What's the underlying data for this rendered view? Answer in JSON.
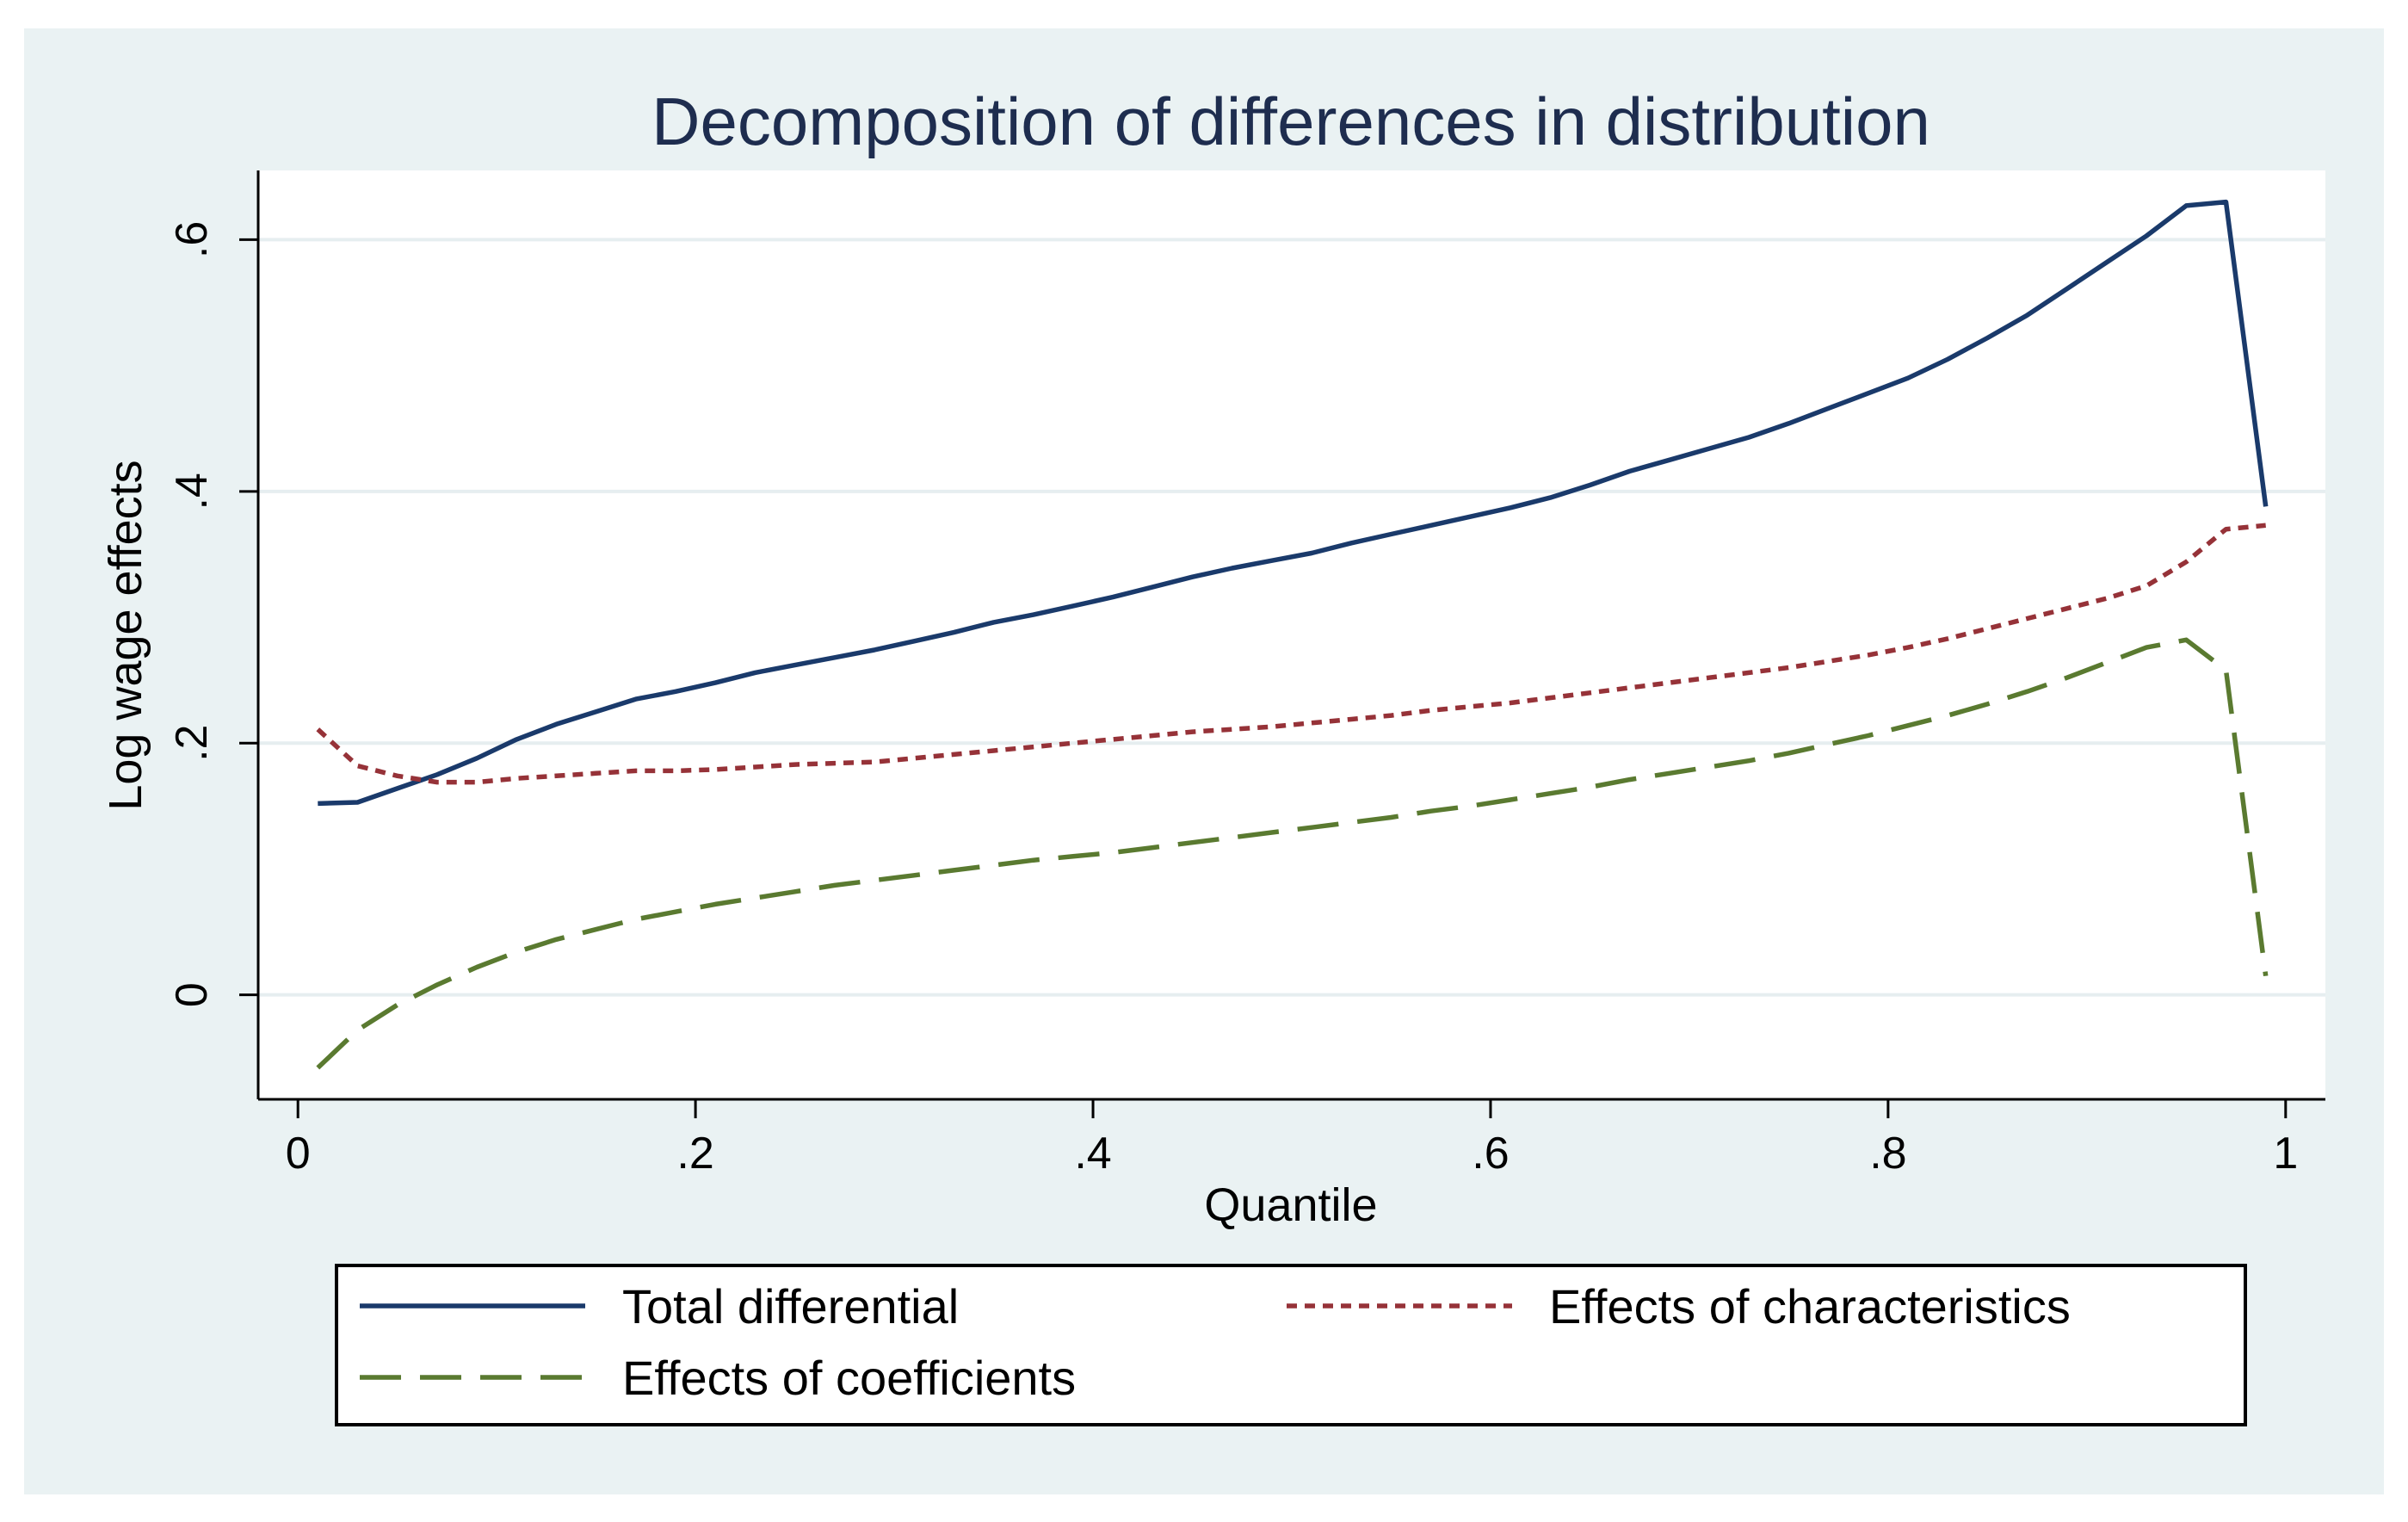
{
  "chart_data": {
    "type": "line",
    "title": "Decomposition of differences in distribution",
    "xlabel": "Quantile",
    "ylabel": "Log wage effects",
    "xlim": [
      -0.02,
      1.02
    ],
    "ylim": [
      -0.083,
      0.655
    ],
    "x_ticks": [
      {
        "value": 0,
        "label": "0"
      },
      {
        "value": 0.2,
        "label": ".2"
      },
      {
        "value": 0.4,
        "label": ".4"
      },
      {
        "value": 0.6,
        "label": ".6"
      },
      {
        "value": 0.8,
        "label": ".8"
      },
      {
        "value": 1,
        "label": "1"
      }
    ],
    "y_ticks": [
      {
        "value": 0,
        "label": "0"
      },
      {
        "value": 0.2,
        "label": ".2"
      },
      {
        "value": 0.4,
        "label": ".4"
      },
      {
        "value": 0.6,
        "label": ".6"
      }
    ],
    "grid": true,
    "legend_position": "bottom",
    "series": [
      {
        "name": "Total differential",
        "color": "#1a3a6b",
        "style": "solid",
        "x": [
          0.01,
          0.03,
          0.05,
          0.07,
          0.09,
          0.11,
          0.13,
          0.15,
          0.17,
          0.19,
          0.21,
          0.23,
          0.25,
          0.27,
          0.29,
          0.31,
          0.33,
          0.35,
          0.37,
          0.39,
          0.41,
          0.43,
          0.45,
          0.47,
          0.49,
          0.51,
          0.53,
          0.55,
          0.57,
          0.59,
          0.61,
          0.63,
          0.65,
          0.67,
          0.69,
          0.71,
          0.73,
          0.75,
          0.77,
          0.79,
          0.81,
          0.83,
          0.85,
          0.87,
          0.89,
          0.91,
          0.93,
          0.95,
          0.97,
          0.99
        ],
        "values": [
          0.152,
          0.153,
          0.164,
          0.175,
          0.188,
          0.203,
          0.215,
          0.225,
          0.235,
          0.241,
          0.248,
          0.256,
          0.262,
          0.268,
          0.274,
          0.281,
          0.288,
          0.296,
          0.302,
          0.309,
          0.316,
          0.324,
          0.332,
          0.339,
          0.345,
          0.351,
          0.359,
          0.366,
          0.373,
          0.38,
          0.387,
          0.395,
          0.405,
          0.416,
          0.425,
          0.434,
          0.443,
          0.454,
          0.466,
          0.478,
          0.49,
          0.505,
          0.522,
          0.54,
          0.561,
          0.582,
          0.603,
          0.627,
          0.63,
          0.388
        ]
      },
      {
        "name": "Effects of characteristics",
        "color": "#963238",
        "style": "dotted",
        "x": [
          0.01,
          0.03,
          0.05,
          0.07,
          0.09,
          0.11,
          0.13,
          0.15,
          0.17,
          0.19,
          0.21,
          0.23,
          0.25,
          0.27,
          0.29,
          0.31,
          0.33,
          0.35,
          0.37,
          0.39,
          0.41,
          0.43,
          0.45,
          0.47,
          0.49,
          0.51,
          0.53,
          0.55,
          0.57,
          0.59,
          0.61,
          0.63,
          0.65,
          0.67,
          0.69,
          0.71,
          0.73,
          0.75,
          0.77,
          0.79,
          0.81,
          0.83,
          0.85,
          0.87,
          0.89,
          0.91,
          0.93,
          0.95,
          0.97,
          0.99
        ],
        "values": [
          0.211,
          0.182,
          0.174,
          0.169,
          0.169,
          0.172,
          0.174,
          0.176,
          0.178,
          0.178,
          0.179,
          0.181,
          0.183,
          0.184,
          0.185,
          0.188,
          0.191,
          0.194,
          0.197,
          0.2,
          0.203,
          0.206,
          0.209,
          0.211,
          0.213,
          0.216,
          0.219,
          0.222,
          0.226,
          0.229,
          0.232,
          0.236,
          0.24,
          0.244,
          0.248,
          0.252,
          0.256,
          0.26,
          0.265,
          0.27,
          0.276,
          0.283,
          0.291,
          0.299,
          0.307,
          0.315,
          0.325,
          0.344,
          0.37,
          0.373
        ]
      },
      {
        "name": "Effects of coefficients",
        "color": "#5a7a30",
        "style": "dashed",
        "x": [
          0.01,
          0.03,
          0.05,
          0.07,
          0.09,
          0.11,
          0.13,
          0.15,
          0.17,
          0.19,
          0.21,
          0.23,
          0.25,
          0.27,
          0.29,
          0.31,
          0.33,
          0.35,
          0.37,
          0.39,
          0.41,
          0.43,
          0.45,
          0.47,
          0.49,
          0.51,
          0.53,
          0.55,
          0.57,
          0.59,
          0.61,
          0.63,
          0.65,
          0.67,
          0.69,
          0.71,
          0.73,
          0.75,
          0.77,
          0.79,
          0.81,
          0.83,
          0.85,
          0.87,
          0.89,
          0.91,
          0.93,
          0.95,
          0.97,
          0.99
        ],
        "values": [
          -0.058,
          -0.028,
          -0.008,
          0.008,
          0.022,
          0.034,
          0.044,
          0.052,
          0.06,
          0.066,
          0.072,
          0.077,
          0.082,
          0.087,
          0.091,
          0.095,
          0.099,
          0.103,
          0.107,
          0.11,
          0.113,
          0.117,
          0.121,
          0.125,
          0.129,
          0.133,
          0.137,
          0.141,
          0.146,
          0.15,
          0.155,
          0.16,
          0.165,
          0.171,
          0.176,
          0.181,
          0.186,
          0.192,
          0.199,
          0.206,
          0.214,
          0.222,
          0.231,
          0.241,
          0.252,
          0.264,
          0.276,
          0.282,
          0.258,
          0.015
        ]
      }
    ]
  }
}
